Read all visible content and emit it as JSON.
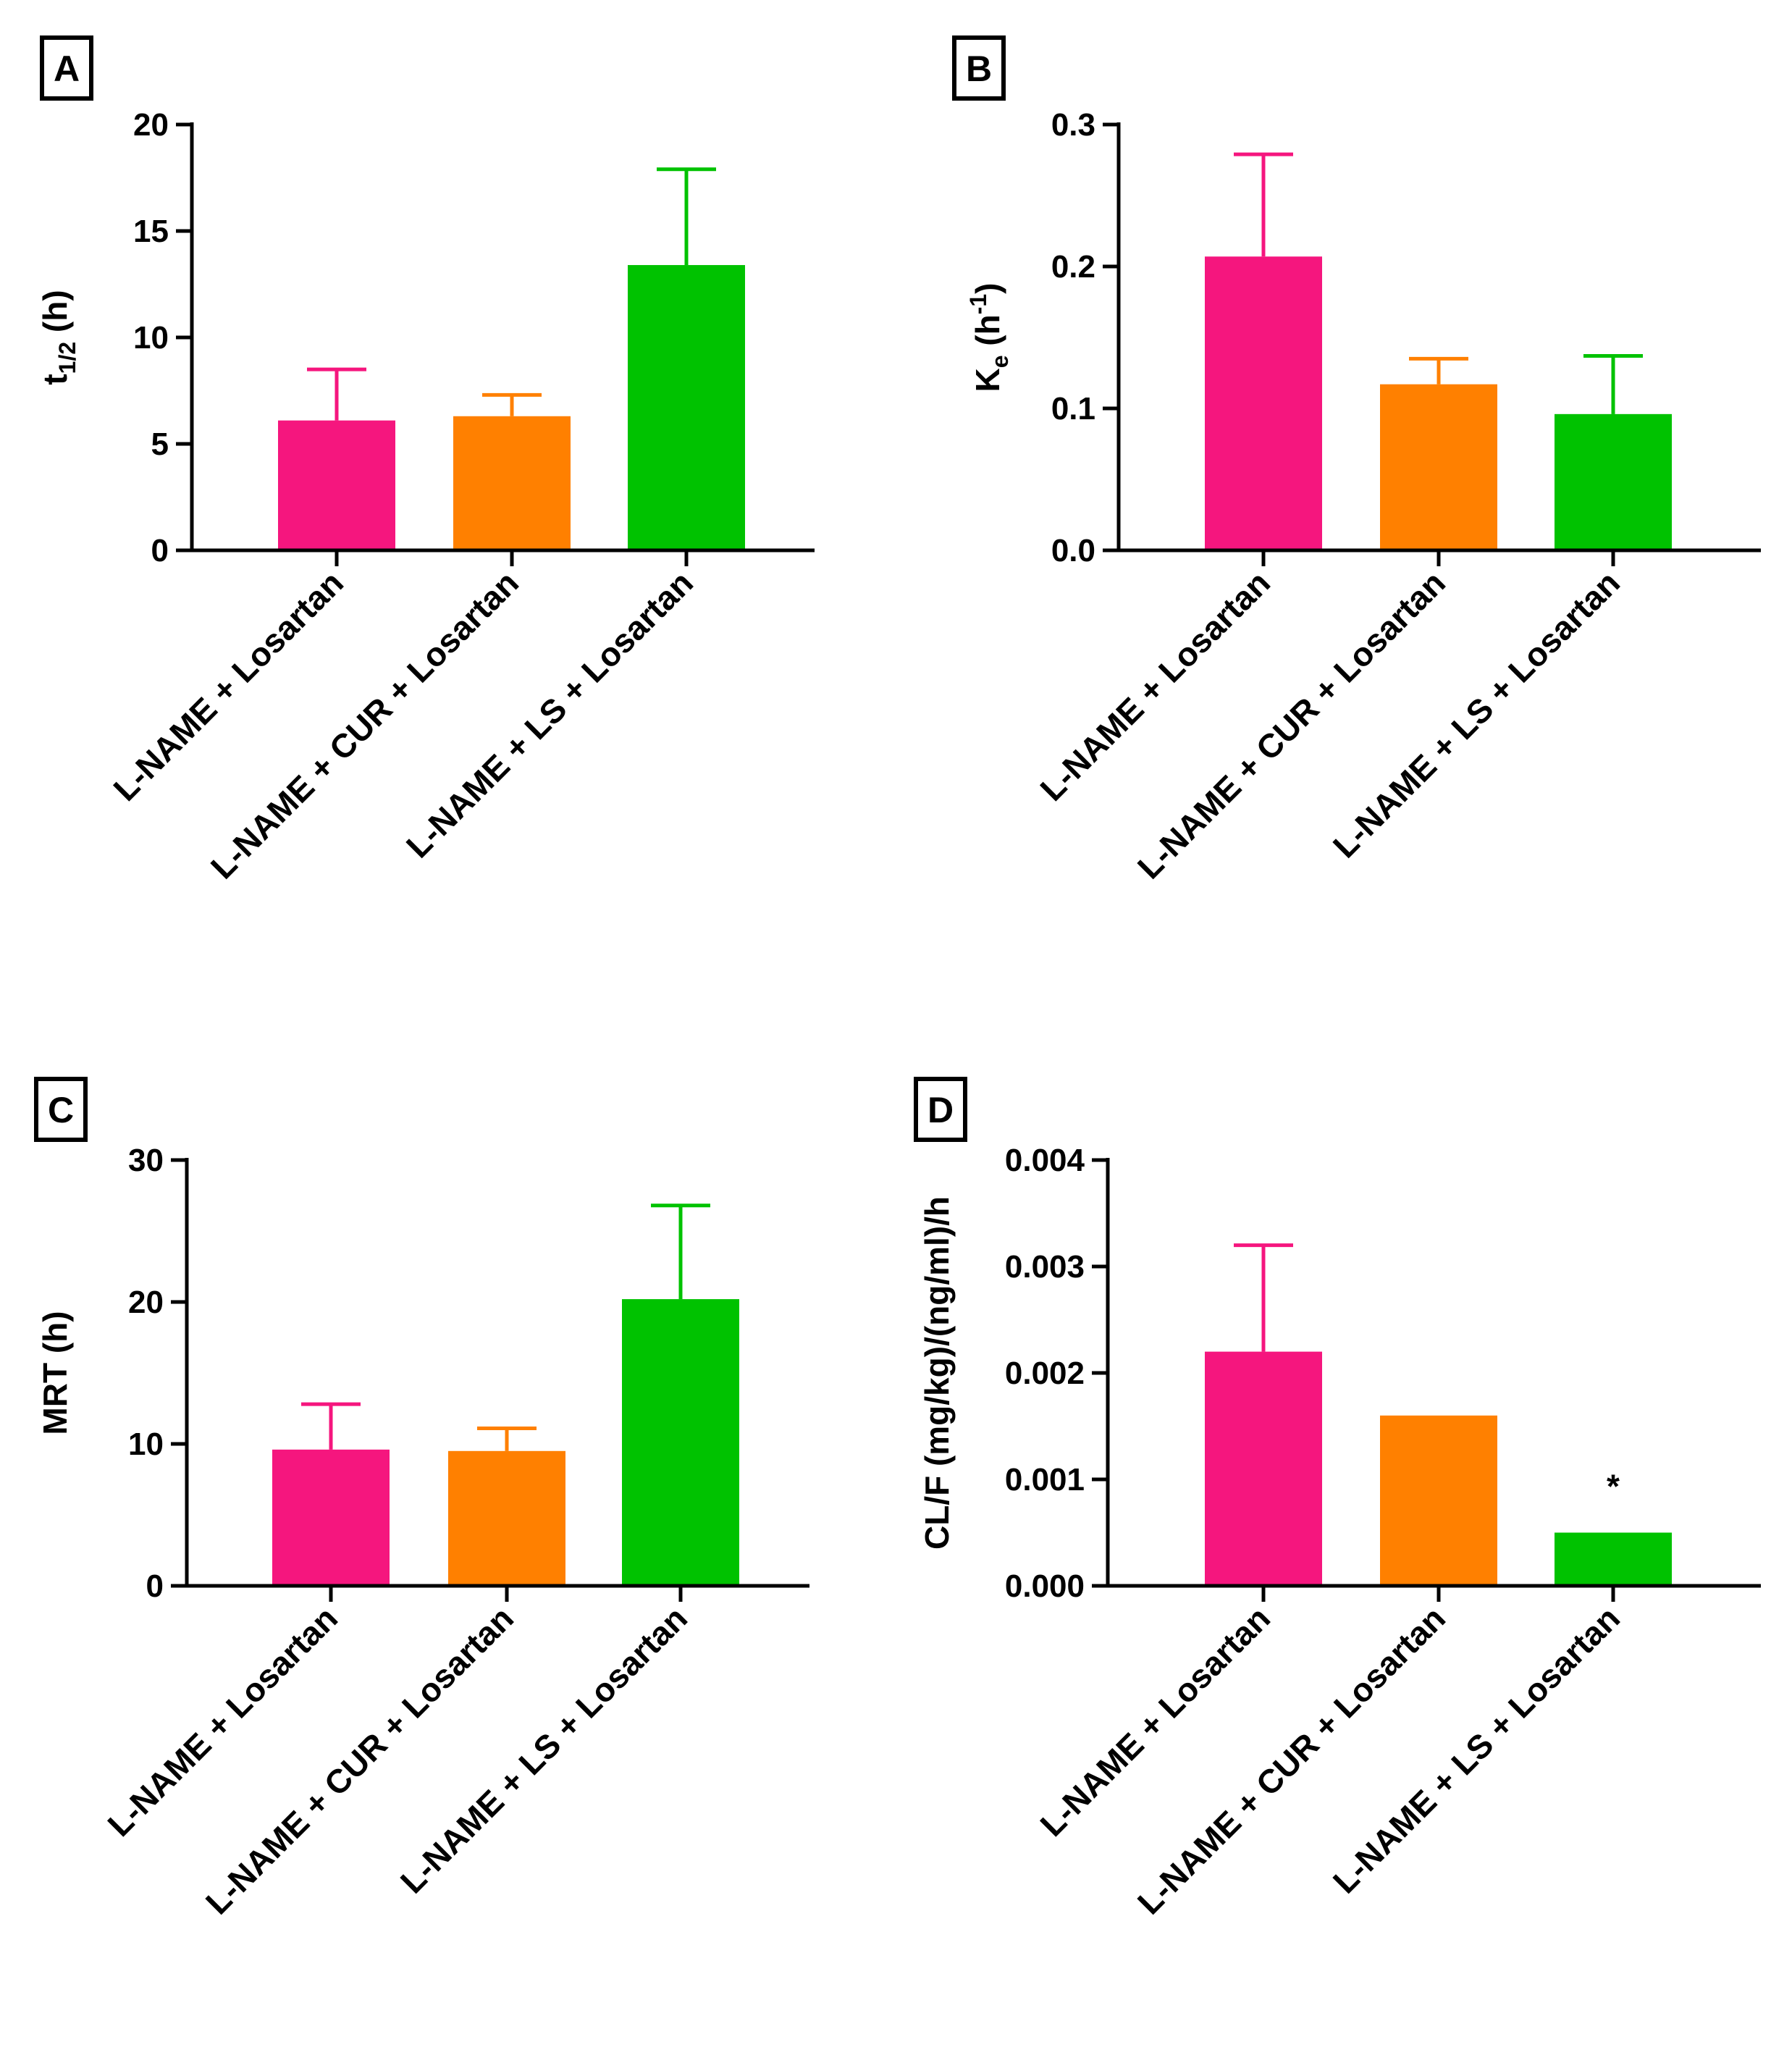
{
  "chart_data": [
    {
      "panel": "A",
      "type": "bar",
      "categories": [
        "L-NAME + Losartan",
        "L-NAME + CUR + Losartan",
        "L-NAME + LS + Losartan"
      ],
      "values": [
        6.1,
        6.3,
        13.4
      ],
      "errors": [
        2.4,
        1.0,
        4.5
      ],
      "colors": [
        "#f5167e",
        "#ff8000",
        "#00c200"
      ],
      "ylabel_main": "t",
      "ylabel_sub": "1/2",
      "ylabel_post": " (h)",
      "ylim": [
        0,
        20
      ],
      "yticks": [
        0,
        5,
        10,
        15,
        20
      ],
      "ytick_labels": [
        "0",
        "5",
        "10",
        "15",
        "20"
      ],
      "annotations": []
    },
    {
      "panel": "B",
      "type": "bar",
      "categories": [
        "L-NAME + Losartan",
        "L-NAME + CUR + Losartan",
        "L-NAME + LS + Losartan"
      ],
      "values": [
        0.207,
        0.117,
        0.096
      ],
      "errors": [
        0.072,
        0.018,
        0.041
      ],
      "colors": [
        "#f5167e",
        "#ff8000",
        "#00c200"
      ],
      "ylabel_main": "K",
      "ylabel_sub": "e",
      "ylabel_post": " (h",
      "ylabel_sup": "-1",
      "ylabel_close": ")",
      "ylim": [
        0,
        0.3
      ],
      "yticks": [
        0,
        0.1,
        0.2,
        0.3
      ],
      "ytick_labels": [
        "0.0",
        "0.1",
        "0.2",
        "0.3"
      ],
      "annotations": []
    },
    {
      "panel": "C",
      "type": "bar",
      "categories": [
        "L-NAME + Losartan",
        "L-NAME + CUR + Losartan",
        "L-NAME + LS + Losartan"
      ],
      "values": [
        9.6,
        9.5,
        20.2
      ],
      "errors": [
        3.2,
        1.6,
        6.6
      ],
      "colors": [
        "#f5167e",
        "#ff8000",
        "#00c200"
      ],
      "ylabel_main": "MRT (h)",
      "ylim": [
        0,
        30
      ],
      "yticks": [
        0,
        10,
        20,
        30
      ],
      "ytick_labels": [
        "0",
        "10",
        "20",
        "30"
      ],
      "annotations": []
    },
    {
      "panel": "D",
      "type": "bar",
      "categories": [
        "L-NAME + Losartan",
        "L-NAME + CUR + Losartan",
        "L-NAME + LS + Losartan"
      ],
      "values": [
        0.0022,
        0.0016,
        0.0005
      ],
      "errors": [
        0.001,
        0,
        0
      ],
      "colors": [
        "#f5167e",
        "#ff8000",
        "#00c200"
      ],
      "ylabel_main": "CL/F (mg/kg)/(ng/ml)/h",
      "ylim": [
        0,
        0.004
      ],
      "yticks": [
        0,
        0.001,
        0.002,
        0.003,
        0.004
      ],
      "ytick_labels": [
        "0.000",
        "0.001",
        "0.002",
        "0.003",
        "0.004"
      ],
      "annotations": [
        {
          "category_index": 2,
          "text": "*"
        }
      ]
    }
  ]
}
